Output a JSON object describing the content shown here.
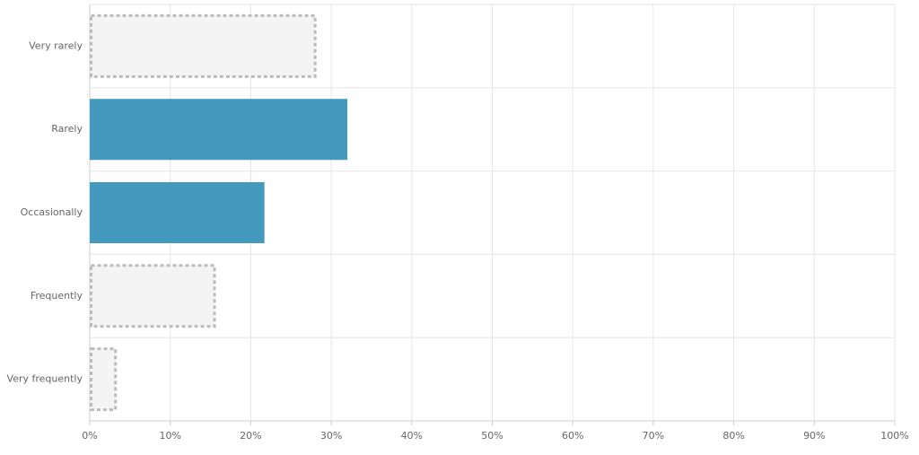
{
  "chart_data": {
    "type": "bar",
    "orientation": "horizontal",
    "categories": [
      "Very rarely",
      "Rarely",
      "Occasionally",
      "Frequently",
      "Very frequently"
    ],
    "values": [
      28,
      32,
      21.7,
      15.5,
      3.2
    ],
    "colors": [
      "#f4f4f4",
      "#4499bf",
      "#4499bf",
      "#f4f4f4",
      "#f4f4f4"
    ],
    "dashed": [
      true,
      false,
      false,
      true,
      true
    ],
    "xlim": [
      0,
      100
    ],
    "xticks": [
      {
        "value": 0,
        "label": "0%"
      },
      {
        "value": 10,
        "label": "10%"
      },
      {
        "value": 20,
        "label": "20%"
      },
      {
        "value": 30,
        "label": "30%"
      },
      {
        "value": 40,
        "label": "40%"
      },
      {
        "value": 50,
        "label": "50%"
      },
      {
        "value": 60,
        "label": "60%"
      },
      {
        "value": 70,
        "label": "70%"
      },
      {
        "value": 80,
        "label": "80%"
      },
      {
        "value": 90,
        "label": "90%"
      },
      {
        "value": 100,
        "label": "100%"
      }
    ],
    "grid": true
  }
}
